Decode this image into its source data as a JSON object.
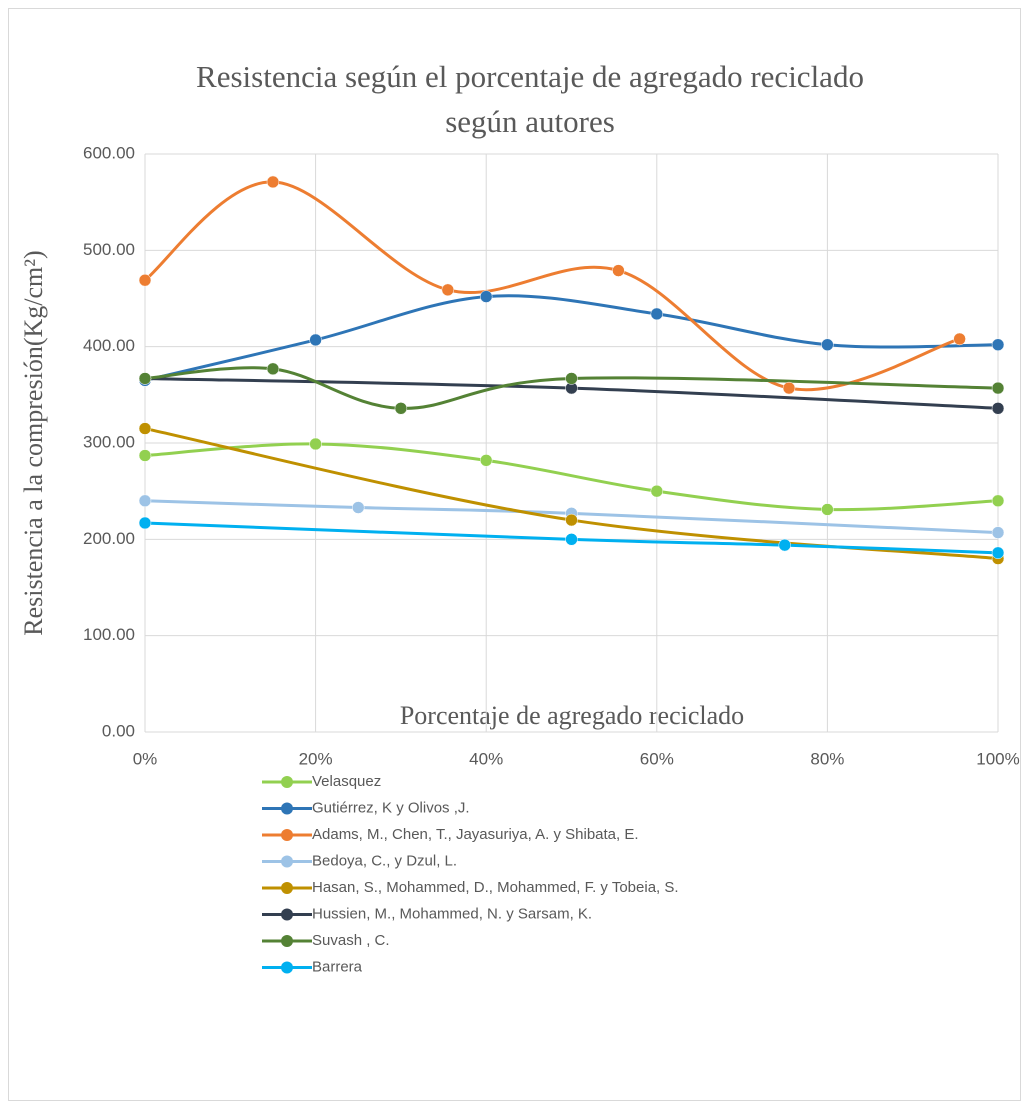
{
  "chart_data": {
    "type": "scatter",
    "title": [
      "Resistencia según el porcentaje de agregado reciclado",
      "según autores"
    ],
    "x_label": "Porcentaje de agregado reciclado",
    "y_label": "Resistencia a la compresión(Kg/cm²)",
    "xlim": [
      0,
      100
    ],
    "xticks": [
      {
        "value": 0,
        "label": "0%"
      },
      {
        "value": 20,
        "label": "20%"
      },
      {
        "value": 40,
        "label": "40%"
      },
      {
        "value": 60,
        "label": "60%"
      },
      {
        "value": 80,
        "label": "80%"
      },
      {
        "value": 100,
        "label": "100%"
      }
    ],
    "ylim": [
      0,
      600
    ],
    "yticks": [
      {
        "value": 0,
        "label": "0.00"
      },
      {
        "value": 100,
        "label": "100.00"
      },
      {
        "value": 200,
        "label": "200.00"
      },
      {
        "value": 300,
        "label": "300.00"
      },
      {
        "value": 400,
        "label": "400.00"
      },
      {
        "value": 500,
        "label": "500.00"
      },
      {
        "value": 600,
        "label": "600.00"
      }
    ],
    "grid": true,
    "smooth": true,
    "legend": "bottom",
    "series": [
      {
        "name": "Velasquez",
        "color": "#92d050",
        "x": [
          0,
          20,
          40,
          60,
          80,
          100
        ],
        "values": [
          287,
          299,
          282,
          250,
          231,
          240
        ]
      },
      {
        "name": "Gutiérrez, K y Olivos ,J.",
        "color": "#2e75b6",
        "x": [
          0,
          20,
          40,
          60,
          80,
          100
        ],
        "values": [
          365,
          407,
          452,
          434,
          402,
          402
        ]
      },
      {
        "name": "Adams, M., Chen, T., Jayasuriya, A. y Shibata, E.",
        "color": "#ed7d31",
        "x": [
          0,
          15,
          35.5,
          55.5,
          75.5,
          95.5
        ],
        "values": [
          469,
          571,
          459,
          479,
          357,
          408
        ]
      },
      {
        "name": "Bedoya, C., y Dzul, L.",
        "color": "#9dc3e6",
        "x": [
          0,
          25,
          50,
          100
        ],
        "values": [
          240,
          233,
          227,
          207
        ]
      },
      {
        "name": "Hasan, S., Mohammed, D., Mohammed, F. y Tobeia, S.",
        "color": "#bf9000",
        "x": [
          0,
          50,
          100
        ],
        "values": [
          315,
          220,
          180
        ]
      },
      {
        "name": "Hussien, M., Mohammed, N. y Sarsam, K.",
        "color": "#333f50",
        "x": [
          0,
          50,
          100
        ],
        "values": [
          367,
          357,
          336
        ]
      },
      {
        "name": "Suvash , C.",
        "color": "#548235",
        "x": [
          0,
          15,
          30,
          50,
          100
        ],
        "values": [
          367,
          377,
          336,
          367,
          357
        ]
      },
      {
        "name": "Barrera",
        "color": "#00b0f0",
        "x": [
          0,
          50,
          75,
          100
        ],
        "values": [
          217,
          200,
          194,
          186
        ]
      }
    ]
  }
}
